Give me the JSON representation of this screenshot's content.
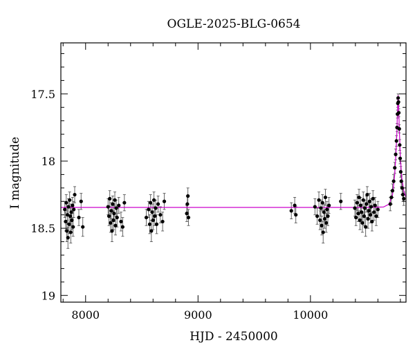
{
  "chart_data": {
    "type": "scatter",
    "title": "OGLE-2025-BLG-0654",
    "xlabel": "HJD - 2450000",
    "ylabel": "I magnitude",
    "xlim": [
      7780,
      10850
    ],
    "ylim": [
      19.05,
      17.12
    ],
    "y_inverted": true,
    "grid": false,
    "x_ticks": [
      8000,
      9000,
      10000
    ],
    "x_tick_labels": [
      "8000",
      "9000",
      "10000"
    ],
    "y_ticks": [
      17.5,
      18,
      18.5,
      19
    ],
    "y_tick_labels": [
      "17.5",
      "18",
      "18.5",
      "19"
    ],
    "colors": {
      "data": "#000000",
      "model": "#cc00cc",
      "errorbar": "#555555"
    },
    "series": [
      {
        "kind": "observations",
        "points": [
          {
            "x": 7815,
            "y": 18.36,
            "e": 0.06
          },
          {
            "x": 7822,
            "y": 18.45,
            "e": 0.07
          },
          {
            "x": 7828,
            "y": 18.31,
            "e": 0.06
          },
          {
            "x": 7833,
            "y": 18.52,
            "e": 0.08
          },
          {
            "x": 7838,
            "y": 18.4,
            "e": 0.07
          },
          {
            "x": 7843,
            "y": 18.57,
            "e": 0.08
          },
          {
            "x": 7848,
            "y": 18.34,
            "e": 0.06
          },
          {
            "x": 7853,
            "y": 18.47,
            "e": 0.07
          },
          {
            "x": 7858,
            "y": 18.29,
            "e": 0.06
          },
          {
            "x": 7863,
            "y": 18.41,
            "e": 0.07
          },
          {
            "x": 7868,
            "y": 18.53,
            "e": 0.08
          },
          {
            "x": 7873,
            "y": 18.38,
            "e": 0.06
          },
          {
            "x": 7878,
            "y": 18.44,
            "e": 0.07
          },
          {
            "x": 7883,
            "y": 18.33,
            "e": 0.06
          },
          {
            "x": 7889,
            "y": 18.49,
            "e": 0.07
          },
          {
            "x": 7895,
            "y": 18.36,
            "e": 0.06
          },
          {
            "x": 7903,
            "y": 18.25,
            "e": 0.06
          },
          {
            "x": 7940,
            "y": 18.42,
            "e": 0.06
          },
          {
            "x": 7960,
            "y": 18.3,
            "e": 0.06
          },
          {
            "x": 7975,
            "y": 18.49,
            "e": 0.07
          },
          {
            "x": 8200,
            "y": 18.34,
            "e": 0.06
          },
          {
            "x": 8208,
            "y": 18.41,
            "e": 0.07
          },
          {
            "x": 8215,
            "y": 18.28,
            "e": 0.06
          },
          {
            "x": 8222,
            "y": 18.46,
            "e": 0.07
          },
          {
            "x": 8228,
            "y": 18.37,
            "e": 0.06
          },
          {
            "x": 8235,
            "y": 18.52,
            "e": 0.08
          },
          {
            "x": 8241,
            "y": 18.32,
            "e": 0.06
          },
          {
            "x": 8247,
            "y": 18.44,
            "e": 0.07
          },
          {
            "x": 8253,
            "y": 18.39,
            "e": 0.06
          },
          {
            "x": 8260,
            "y": 18.29,
            "e": 0.06
          },
          {
            "x": 8266,
            "y": 18.48,
            "e": 0.07
          },
          {
            "x": 8273,
            "y": 18.35,
            "e": 0.06
          },
          {
            "x": 8280,
            "y": 18.42,
            "e": 0.07
          },
          {
            "x": 8295,
            "y": 18.33,
            "e": 0.06
          },
          {
            "x": 8315,
            "y": 18.45,
            "e": 0.07
          },
          {
            "x": 8330,
            "y": 18.49,
            "e": 0.07
          },
          {
            "x": 8345,
            "y": 18.31,
            "e": 0.06
          },
          {
            "x": 8540,
            "y": 18.42,
            "e": 0.06
          },
          {
            "x": 8560,
            "y": 18.36,
            "e": 0.06
          },
          {
            "x": 8570,
            "y": 18.47,
            "e": 0.07
          },
          {
            "x": 8578,
            "y": 18.31,
            "e": 0.06
          },
          {
            "x": 8585,
            "y": 18.52,
            "e": 0.08
          },
          {
            "x": 8592,
            "y": 18.38,
            "e": 0.06
          },
          {
            "x": 8600,
            "y": 18.44,
            "e": 0.07
          },
          {
            "x": 8608,
            "y": 18.29,
            "e": 0.06
          },
          {
            "x": 8615,
            "y": 18.41,
            "e": 0.07
          },
          {
            "x": 8623,
            "y": 18.35,
            "e": 0.06
          },
          {
            "x": 8632,
            "y": 18.47,
            "e": 0.07
          },
          {
            "x": 8645,
            "y": 18.32,
            "e": 0.06
          },
          {
            "x": 8665,
            "y": 18.4,
            "e": 0.06
          },
          {
            "x": 8685,
            "y": 18.45,
            "e": 0.07
          },
          {
            "x": 8700,
            "y": 18.3,
            "e": 0.06
          },
          {
            "x": 8900,
            "y": 18.39,
            "e": 0.06
          },
          {
            "x": 8905,
            "y": 18.32,
            "e": 0.06
          },
          {
            "x": 8910,
            "y": 18.26,
            "e": 0.06
          },
          {
            "x": 8915,
            "y": 18.42,
            "e": 0.06
          },
          {
            "x": 9830,
            "y": 18.37,
            "e": 0.06
          },
          {
            "x": 9860,
            "y": 18.33,
            "e": 0.06
          },
          {
            "x": 9870,
            "y": 18.4,
            "e": 0.06
          },
          {
            "x": 10040,
            "y": 18.34,
            "e": 0.06
          },
          {
            "x": 10060,
            "y": 18.41,
            "e": 0.06
          },
          {
            "x": 10075,
            "y": 18.29,
            "e": 0.06
          },
          {
            "x": 10085,
            "y": 18.44,
            "e": 0.07
          },
          {
            "x": 10093,
            "y": 18.35,
            "e": 0.06
          },
          {
            "x": 10100,
            "y": 18.48,
            "e": 0.07
          },
          {
            "x": 10107,
            "y": 18.31,
            "e": 0.06
          },
          {
            "x": 10113,
            "y": 18.53,
            "e": 0.08
          },
          {
            "x": 10120,
            "y": 18.38,
            "e": 0.06
          },
          {
            "x": 10127,
            "y": 18.43,
            "e": 0.07
          },
          {
            "x": 10133,
            "y": 18.27,
            "e": 0.06
          },
          {
            "x": 10140,
            "y": 18.46,
            "e": 0.07
          },
          {
            "x": 10147,
            "y": 18.36,
            "e": 0.06
          },
          {
            "x": 10155,
            "y": 18.41,
            "e": 0.07
          },
          {
            "x": 10165,
            "y": 18.33,
            "e": 0.06
          },
          {
            "x": 10270,
            "y": 18.3,
            "e": 0.06
          },
          {
            "x": 10395,
            "y": 18.35,
            "e": 0.06
          },
          {
            "x": 10405,
            "y": 18.42,
            "e": 0.06
          },
          {
            "x": 10415,
            "y": 18.31,
            "e": 0.06
          },
          {
            "x": 10425,
            "y": 18.39,
            "e": 0.06
          },
          {
            "x": 10432,
            "y": 18.27,
            "e": 0.06
          },
          {
            "x": 10440,
            "y": 18.44,
            "e": 0.07
          },
          {
            "x": 10447,
            "y": 18.33,
            "e": 0.06
          },
          {
            "x": 10455,
            "y": 18.38,
            "e": 0.06
          },
          {
            "x": 10462,
            "y": 18.46,
            "e": 0.07
          },
          {
            "x": 10470,
            "y": 18.29,
            "e": 0.06
          },
          {
            "x": 10477,
            "y": 18.41,
            "e": 0.07
          },
          {
            "x": 10484,
            "y": 18.35,
            "e": 0.06
          },
          {
            "x": 10491,
            "y": 18.49,
            "e": 0.07
          },
          {
            "x": 10498,
            "y": 18.32,
            "e": 0.06
          },
          {
            "x": 10505,
            "y": 18.25,
            "e": 0.06
          },
          {
            "x": 10512,
            "y": 18.43,
            "e": 0.07
          },
          {
            "x": 10519,
            "y": 18.37,
            "e": 0.06
          },
          {
            "x": 10526,
            "y": 18.3,
            "e": 0.06
          },
          {
            "x": 10533,
            "y": 18.4,
            "e": 0.06
          },
          {
            "x": 10540,
            "y": 18.34,
            "e": 0.06
          },
          {
            "x": 10548,
            "y": 18.45,
            "e": 0.07
          },
          {
            "x": 10556,
            "y": 18.28,
            "e": 0.06
          },
          {
            "x": 10565,
            "y": 18.38,
            "e": 0.06
          },
          {
            "x": 10575,
            "y": 18.33,
            "e": 0.06
          },
          {
            "x": 10585,
            "y": 18.41,
            "e": 0.07
          },
          {
            "x": 10600,
            "y": 18.36,
            "e": 0.06
          },
          {
            "x": 10710,
            "y": 18.32,
            "e": 0.05
          },
          {
            "x": 10720,
            "y": 18.27,
            "e": 0.05
          },
          {
            "x": 10730,
            "y": 18.22,
            "e": 0.05
          },
          {
            "x": 10740,
            "y": 18.15,
            "e": 0.05
          },
          {
            "x": 10750,
            "y": 18.05,
            "e": 0.04
          },
          {
            "x": 10758,
            "y": 17.95,
            "e": 0.04
          },
          {
            "x": 10765,
            "y": 17.85,
            "e": 0.04
          },
          {
            "x": 10770,
            "y": 17.75,
            "e": 0.03
          },
          {
            "x": 10774,
            "y": 17.65,
            "e": 0.03
          },
          {
            "x": 10777,
            "y": 17.57,
            "e": 0.03
          },
          {
            "x": 10780,
            "y": 17.53,
            "e": 0.03
          },
          {
            "x": 10783,
            "y": 17.56,
            "e": 0.03
          },
          {
            "x": 10786,
            "y": 17.64,
            "e": 0.03
          },
          {
            "x": 10790,
            "y": 17.76,
            "e": 0.03
          },
          {
            "x": 10794,
            "y": 17.88,
            "e": 0.04
          },
          {
            "x": 10798,
            "y": 17.98,
            "e": 0.04
          },
          {
            "x": 10803,
            "y": 18.08,
            "e": 0.04
          },
          {
            "x": 10808,
            "y": 18.15,
            "e": 0.04
          },
          {
            "x": 10815,
            "y": 18.2,
            "e": 0.05
          },
          {
            "x": 10822,
            "y": 18.25,
            "e": 0.05
          },
          {
            "x": 10830,
            "y": 18.28,
            "e": 0.05
          }
        ]
      },
      {
        "kind": "model",
        "points": [
          {
            "x": 7780,
            "y": 18.345
          },
          {
            "x": 10000,
            "y": 18.345
          },
          {
            "x": 10500,
            "y": 18.345
          },
          {
            "x": 10650,
            "y": 18.342
          },
          {
            "x": 10700,
            "y": 18.32
          },
          {
            "x": 10730,
            "y": 18.25
          },
          {
            "x": 10750,
            "y": 18.1
          },
          {
            "x": 10760,
            "y": 17.95
          },
          {
            "x": 10768,
            "y": 17.8
          },
          {
            "x": 10774,
            "y": 17.64
          },
          {
            "x": 10778,
            "y": 17.54
          },
          {
            "x": 10780,
            "y": 17.51
          },
          {
            "x": 10782,
            "y": 17.54
          },
          {
            "x": 10786,
            "y": 17.64
          },
          {
            "x": 10792,
            "y": 17.8
          },
          {
            "x": 10800,
            "y": 17.98
          },
          {
            "x": 10812,
            "y": 18.12
          },
          {
            "x": 10830,
            "y": 18.22
          },
          {
            "x": 10850,
            "y": 18.27
          }
        ]
      }
    ]
  }
}
